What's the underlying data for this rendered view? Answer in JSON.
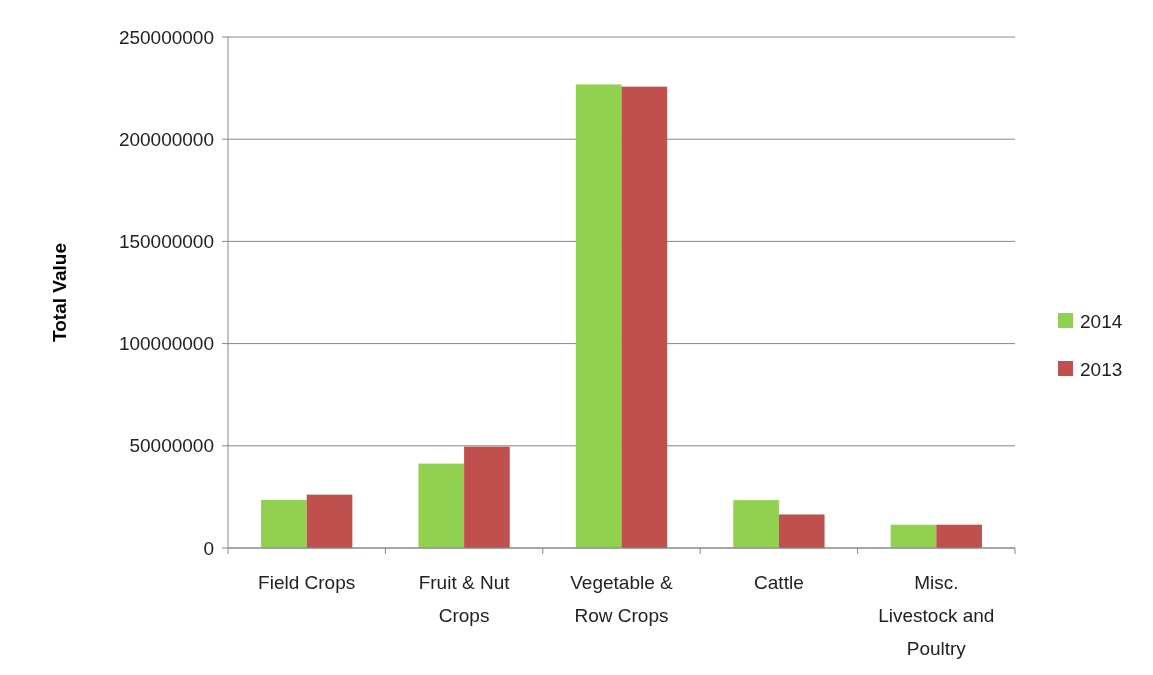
{
  "chart_data": {
    "type": "bar",
    "ylabel": "Total Value",
    "categories": [
      "Field Crops",
      "Fruit & Nut Crops",
      "Vegetable & Row Crops",
      "Cattle",
      "Misc. Livestock and Poultry"
    ],
    "series": [
      {
        "name": "2014",
        "color": "#92d050",
        "values": [
          23500000,
          41300000,
          226800000,
          23400000,
          11400000
        ]
      },
      {
        "name": "2013",
        "color": "#c0504d",
        "values": [
          26100000,
          49600000,
          225700000,
          16400000,
          11400000
        ]
      }
    ],
    "ylim": [
      0,
      250000000
    ],
    "yticks": [
      0,
      50000000,
      100000000,
      150000000,
      200000000,
      250000000
    ],
    "grid": "y",
    "legend": "right"
  }
}
